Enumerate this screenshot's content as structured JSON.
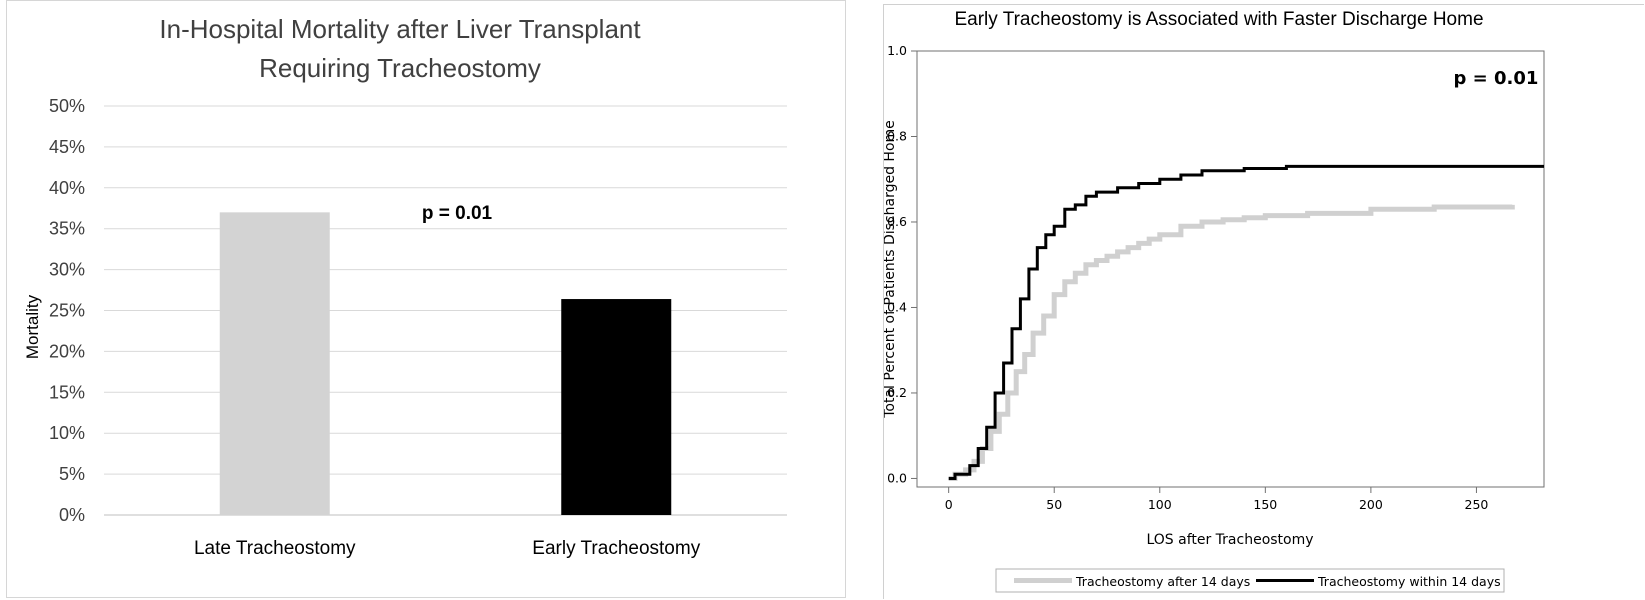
{
  "chart_data": [
    {
      "type": "bar",
      "title": "In-Hospital Mortality after Liver Transplant",
      "subtitle": "Requiring Tracheostomy",
      "ylabel": "Mortality",
      "xlabel": "",
      "categories": [
        "Late Tracheostomy",
        "Early Tracheostomy"
      ],
      "values": [
        0.37,
        0.264
      ],
      "colors": [
        "#d3d3d3",
        "#000000"
      ],
      "ylim": [
        0,
        0.5
      ],
      "yticks": [
        "0%",
        "5%",
        "10%",
        "15%",
        "20%",
        "25%",
        "30%",
        "35%",
        "40%",
        "45%",
        "50%"
      ],
      "annotation": "p = 0.01",
      "grid": true
    },
    {
      "type": "line",
      "title": "Early Tracheostomy is Associated with Faster Discharge Home",
      "xlabel": "LOS after Tracheostomy",
      "ylabel": "Total Percent of Patients Discharged Home",
      "xlim": [
        -15,
        282
      ],
      "ylim": [
        -0.02,
        1.0
      ],
      "xticks": [
        "0",
        "50",
        "100",
        "150",
        "200",
        "250"
      ],
      "yticks": [
        "0.0",
        "0.2",
        "0.4",
        "0.6",
        "0.8",
        "1.0"
      ],
      "annotation": "p = 0.01",
      "grid": false,
      "legend_position": "bottom",
      "series": [
        {
          "name": "Tracheostomy after 14 days",
          "color": "#d0d0d0",
          "step": true,
          "x": [
            0,
            3,
            8,
            12,
            16,
            20,
            24,
            28,
            32,
            36,
            40,
            45,
            50,
            55,
            60,
            65,
            70,
            75,
            80,
            85,
            90,
            95,
            100,
            110,
            120,
            130,
            140,
            150,
            170,
            200,
            230,
            267
          ],
          "y": [
            0.0,
            0.01,
            0.02,
            0.04,
            0.07,
            0.11,
            0.15,
            0.2,
            0.25,
            0.29,
            0.34,
            0.38,
            0.43,
            0.46,
            0.48,
            0.5,
            0.51,
            0.52,
            0.53,
            0.54,
            0.55,
            0.56,
            0.57,
            0.59,
            0.6,
            0.605,
            0.61,
            0.615,
            0.62,
            0.63,
            0.635,
            0.64
          ]
        },
        {
          "name": "Tracheostomy within 14 days",
          "color": "#000000",
          "step": true,
          "x": [
            0,
            3,
            8,
            10,
            14,
            18,
            22,
            26,
            30,
            34,
            38,
            42,
            46,
            50,
            55,
            60,
            65,
            70,
            75,
            80,
            90,
            100,
            110,
            120,
            140,
            160,
            200,
            240,
            282
          ],
          "y": [
            0.0,
            0.01,
            0.01,
            0.03,
            0.07,
            0.12,
            0.2,
            0.27,
            0.35,
            0.42,
            0.49,
            0.54,
            0.57,
            0.59,
            0.63,
            0.64,
            0.66,
            0.67,
            0.67,
            0.68,
            0.69,
            0.7,
            0.71,
            0.72,
            0.725,
            0.73,
            0.73,
            0.73,
            0.73
          ]
        }
      ]
    }
  ]
}
